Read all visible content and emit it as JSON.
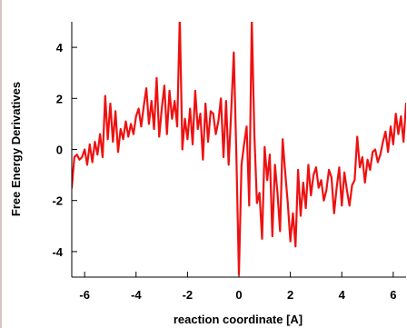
{
  "chart_data": {
    "type": "line",
    "title": "",
    "xlabel": "reaction coordinate [A]",
    "ylabel": "Free Energy Derivatives",
    "xlim": [
      -6.5,
      6.5
    ],
    "ylim": [
      -5,
      5
    ],
    "xticks": [
      -6,
      -4,
      -2,
      0,
      2,
      4,
      6
    ],
    "yticks": [
      -4,
      -2,
      0,
      2,
      4
    ],
    "xtick_labels": [
      "-6",
      "-4",
      "-2",
      "0",
      "2",
      "4",
      "6"
    ],
    "ytick_labels": [
      "-4",
      "-2",
      "0",
      "2",
      "4"
    ],
    "grid": false,
    "series": [
      {
        "color": "#ee1111",
        "x": [
          -6.5,
          -6.4,
          -6.3,
          -6.2,
          -6.1,
          -6.0,
          -5.9,
          -5.8,
          -5.7,
          -5.6,
          -5.5,
          -5.4,
          -5.3,
          -5.2,
          -5.1,
          -5.0,
          -4.9,
          -4.8,
          -4.7,
          -4.6,
          -4.5,
          -4.4,
          -4.3,
          -4.2,
          -4.1,
          -4.0,
          -3.9,
          -3.8,
          -3.7,
          -3.6,
          -3.5,
          -3.4,
          -3.3,
          -3.2,
          -3.1,
          -3.0,
          -2.9,
          -2.8,
          -2.7,
          -2.6,
          -2.5,
          -2.4,
          -2.3,
          -2.2,
          -2.1,
          -2.0,
          -1.9,
          -1.8,
          -1.7,
          -1.6,
          -1.5,
          -1.4,
          -1.3,
          -1.2,
          -1.1,
          -1.0,
          -0.9,
          -0.8,
          -0.7,
          -0.6,
          -0.5,
          -0.4,
          -0.3,
          -0.2,
          -0.1,
          0.0,
          0.1,
          0.2,
          0.3,
          0.4,
          0.5,
          0.6,
          0.7,
          0.8,
          0.9,
          1.0,
          1.1,
          1.2,
          1.3,
          1.4,
          1.5,
          1.6,
          1.7,
          1.8,
          1.9,
          2.0,
          2.1,
          2.2,
          2.3,
          2.4,
          2.5,
          2.6,
          2.7,
          2.8,
          2.9,
          3.0,
          3.1,
          3.2,
          3.3,
          3.4,
          3.5,
          3.6,
          3.7,
          3.8,
          3.9,
          4.0,
          4.1,
          4.2,
          4.3,
          4.4,
          4.5,
          4.6,
          4.7,
          4.8,
          4.9,
          5.0,
          5.1,
          5.2,
          5.3,
          5.4,
          5.5,
          5.6,
          5.7,
          5.8,
          5.9,
          6.0,
          6.1,
          6.2,
          6.3,
          6.4,
          6.5
        ],
        "y": [
          -1.5,
          -0.3,
          -0.2,
          -0.4,
          -0.3,
          0.0,
          -0.6,
          0.2,
          -0.5,
          0.3,
          -0.2,
          0.6,
          -0.3,
          2.1,
          0.4,
          1.8,
          0.3,
          1.5,
          -0.1,
          0.8,
          0.4,
          1.1,
          0.5,
          1.0,
          0.6,
          1.3,
          1.6,
          0.9,
          1.7,
          2.4,
          1.0,
          1.9,
          0.8,
          2.8,
          0.5,
          1.6,
          2.5,
          0.6,
          2.3,
          1.2,
          1.9,
          0.9,
          5.2,
          0.0,
          1.2,
          0.4,
          1.6,
          0.2,
          2.3,
          0.8,
          1.4,
          -0.4,
          1.8,
          0.3,
          1.5,
          1.4,
          0.6,
          1.1,
          2.0,
          -0.3,
          1.9,
          -0.6,
          1.5,
          3.8,
          -0.2,
          -4.9,
          -0.6,
          0.2,
          0.9,
          -2.2,
          5.1,
          0.6,
          -2.1,
          -1.7,
          -3.5,
          0.1,
          -1.2,
          -0.2,
          -3.4,
          -0.6,
          -1.7,
          -3.2,
          0.4,
          -0.9,
          -2.1,
          -3.6,
          -2.5,
          -3.8,
          -0.8,
          -2.6,
          -1.3,
          -2.3,
          -0.6,
          -1.8,
          -1.0,
          -0.7,
          -1.5,
          -1.2,
          -2.0,
          -1.6,
          -0.8,
          -1.1,
          -2.5,
          -1.5,
          -0.7,
          -2.2,
          -0.9,
          -1.6,
          -2.2,
          -1.4,
          -1.2,
          0.5,
          -0.7,
          -0.3,
          -1.3,
          -0.4,
          -0.8,
          -0.1,
          0.0,
          -0.5,
          -0.2,
          0.3,
          0.7,
          -0.1,
          0.9,
          0.2,
          1.4,
          0.6,
          1.3,
          0.3,
          1.8
        ]
      }
    ]
  }
}
